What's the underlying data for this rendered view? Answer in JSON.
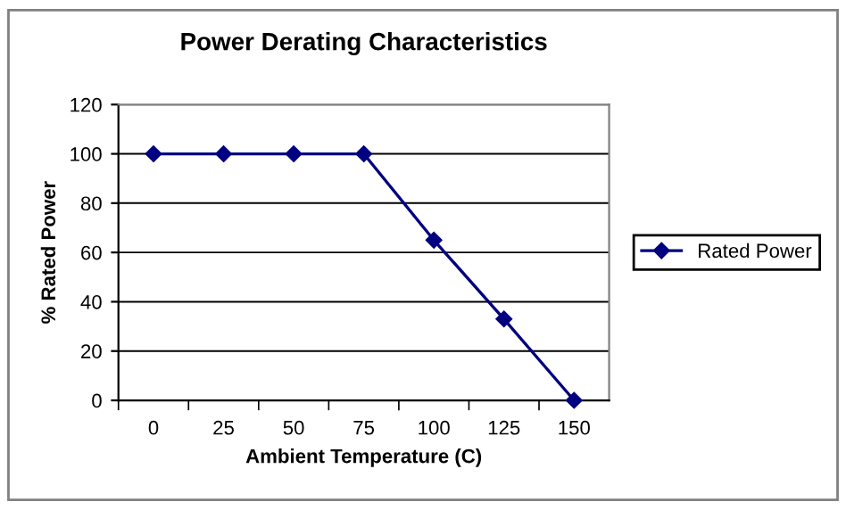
{
  "chart_data": {
    "type": "line",
    "title": "Power Derating Characteristics",
    "xlabel": "Ambient Temperature (C)",
    "ylabel": "% Rated Power",
    "categories": [
      "0",
      "25",
      "50",
      "75",
      "100",
      "125",
      "150"
    ],
    "series": [
      {
        "name": "Rated Power",
        "color": "#000080",
        "values": [
          100,
          100,
          100,
          100,
          65,
          33,
          0
        ]
      }
    ],
    "ylim": [
      0,
      120
    ],
    "yticks": [
      0,
      20,
      40,
      60,
      80,
      100,
      120
    ],
    "grid": "y",
    "legend": "right",
    "marker": "diamond",
    "line_style": "solid"
  }
}
